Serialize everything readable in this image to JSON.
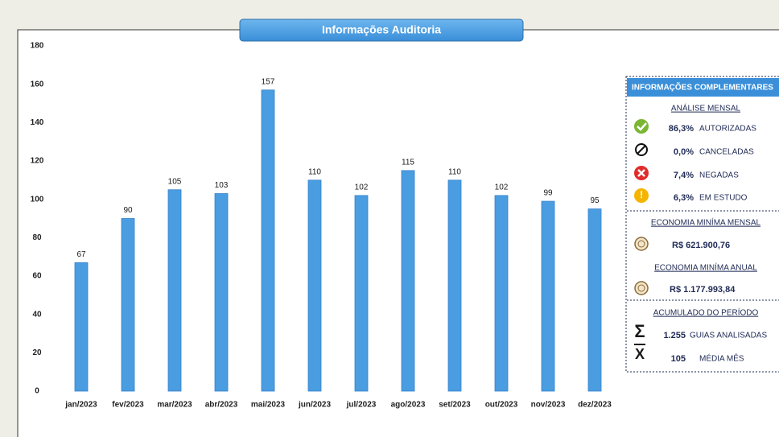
{
  "chart_data": {
    "type": "bar",
    "title": "Informações Auditoria",
    "categories": [
      "jan/2023",
      "fev/2023",
      "mar/2023",
      "abr/2023",
      "mai/2023",
      "jun/2023",
      "jul/2023",
      "ago/2023",
      "set/2023",
      "out/2023",
      "nov/2023",
      "dez/2023"
    ],
    "values": [
      67,
      90,
      105,
      103,
      157,
      110,
      102,
      115,
      110,
      102,
      99,
      95
    ],
    "color": "#4a9de0",
    "ylim": [
      0,
      180
    ],
    "yticks": [
      0,
      20,
      40,
      60,
      80,
      100,
      120,
      140,
      160,
      180
    ],
    "grid": false
  },
  "panel": {
    "title": "INFORMAÇÕES COMPLEMENTARES",
    "monthly": {
      "heading": "ANÁLISE MENSAL",
      "items": [
        {
          "value": "86,3%",
          "label": "AUTORIZADAS"
        },
        {
          "value": "0,0%",
          "label": "CANCELADAS"
        },
        {
          "value": "7,4%",
          "label": "NEGADAS"
        },
        {
          "value": "6,3%",
          "label": "EM ESTUDO"
        }
      ]
    },
    "economy_monthly": {
      "heading": "ECONOMIA MINÍMA MENSAL",
      "value": "R$ 621.900,76"
    },
    "economy_annual": {
      "heading": "ECONOMIA MINÍMA ANUAL",
      "value": "R$ 1.177.993,84"
    },
    "accumulated": {
      "heading": "ACUMULADO DO PERÍODO",
      "items": [
        {
          "value": "1.255",
          "label": "GUIAS ANALISADAS"
        },
        {
          "value": "105",
          "label": "MÉDIA MÊS"
        }
      ]
    }
  }
}
